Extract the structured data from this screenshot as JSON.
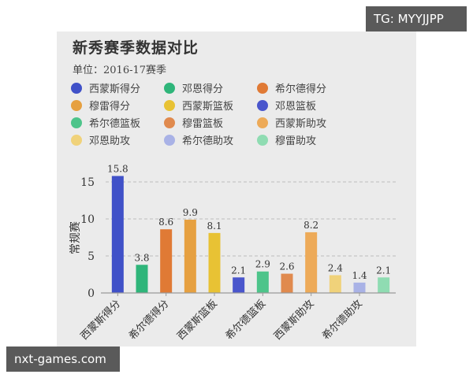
{
  "header": {
    "title": "新秀赛季数据对比",
    "subtitle": "单位：2016-17赛季"
  },
  "watermarks": {
    "top_right": "TG: MYYJJPP",
    "bottom_left": "nxt-games.com"
  },
  "legend": [
    {
      "label": "西蒙斯得分",
      "color": "#4051c8"
    },
    {
      "label": "邓恩得分",
      "color": "#2fb57a"
    },
    {
      "label": "希尔德得分",
      "color": "#e07a35"
    },
    {
      "label": "穆雷得分",
      "color": "#e6a040"
    },
    {
      "label": "西蒙斯篮板",
      "color": "#e8c234"
    },
    {
      "label": "邓恩篮板",
      "color": "#4a56cc"
    },
    {
      "label": "希尔德篮板",
      "color": "#4dc48a"
    },
    {
      "label": "穆雷篮板",
      "color": "#e08a4e"
    },
    {
      "label": "西蒙斯助攻",
      "color": "#edaa58"
    },
    {
      "label": "邓恩助攻",
      "color": "#f0d27a"
    },
    {
      "label": "希尔德助攻",
      "color": "#a9b2e6"
    },
    {
      "label": "穆雷助攻",
      "color": "#8fdcb2"
    }
  ],
  "chart_data": {
    "type": "bar",
    "title": "新秀赛季数据对比",
    "subtitle": "单位：2016-17赛季",
    "xlabel": "",
    "ylabel": "常规赛",
    "ylim": [
      0,
      17
    ],
    "yticks": [
      0,
      5,
      10,
      15
    ],
    "grid": "horizontal dashed",
    "legend_position": "top",
    "categories": [
      "西蒙斯得分",
      "邓恩得分",
      "希尔德得分",
      "穆雷得分",
      "西蒙斯篮板",
      "邓恩篮板",
      "希尔德篮板",
      "穆雷篮板",
      "西蒙斯助攻",
      "邓恩助攻",
      "希尔德助攻",
      "穆雷助攻"
    ],
    "visible_tick_labels": [
      "西蒙斯得分",
      "希尔德得分",
      "西蒙斯篮板",
      "希尔德篮板",
      "西蒙斯助攻",
      "希尔德助攻"
    ],
    "values": [
      15.8,
      3.8,
      8.6,
      9.9,
      8.1,
      2.1,
      2.9,
      2.6,
      8.2,
      2.4,
      1.4,
      2.1
    ],
    "colors": [
      "#4051c8",
      "#2fb57a",
      "#e07a35",
      "#e6a040",
      "#e8c234",
      "#4a56cc",
      "#4dc48a",
      "#e08a4e",
      "#edaa58",
      "#f0d27a",
      "#a9b2e6",
      "#8fdcb2"
    ]
  }
}
